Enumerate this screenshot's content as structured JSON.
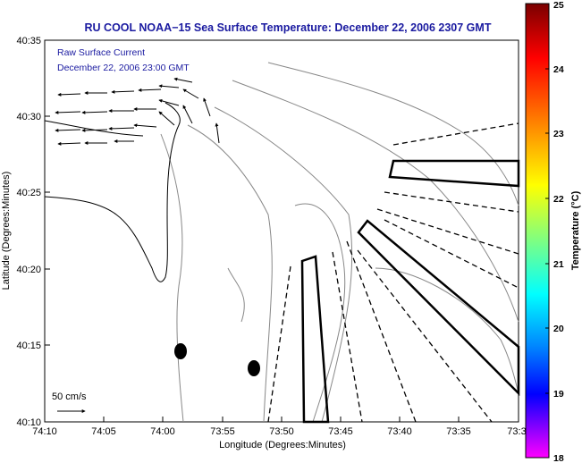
{
  "title": "RU COOL  NOAA−15  Sea Surface Temperature:  December 22, 2006 2307 GMT",
  "legend": {
    "line1": "Raw Surface Current",
    "line2": "December 22, 2006 23:00 GMT",
    "scale_label": "50 cm/s"
  },
  "y_axis": {
    "label": "Latitude (Degrees:Minutes)",
    "ticks": [
      "40:35",
      "40:30",
      "40:25",
      "40:20",
      "40:15",
      "40:10"
    ]
  },
  "x_axis": {
    "label": "Longitude (Degrees:Minutes)",
    "ticks": [
      "74:10",
      "74:05",
      "74:00",
      "73:55",
      "73:50",
      "73:45",
      "73:40",
      "73:35",
      "73:3"
    ]
  },
  "colorbar": {
    "label": "Temperature (°C)",
    "ticks": [
      "25",
      "24",
      "23",
      "22",
      "21",
      "20",
      "19",
      "18"
    ],
    "colors": [
      "#7a0000",
      "#ff0000",
      "#ff8000",
      "#ffff00",
      "#80ff80",
      "#00ffff",
      "#0080ff",
      "#0000ff",
      "#ff00ff"
    ]
  }
}
